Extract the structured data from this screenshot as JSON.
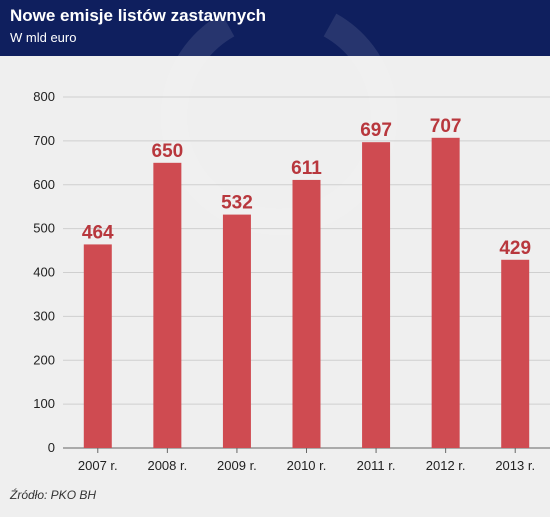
{
  "header": {
    "title": "Nowe emisje listów zastawnych",
    "subtitle": "W mld euro"
  },
  "source": "Źródło: PKO BH",
  "colors": {
    "bar": "#cf4b51",
    "label": "#b8373d",
    "header_bg": "#0f1f5e",
    "background": "#efefef",
    "gridline": "#cfcfcf"
  },
  "chart_data": {
    "type": "bar",
    "categories": [
      "2007 r.",
      "2008 r.",
      "2009 r.",
      "2010 r.",
      "2011 r.",
      "2012 r.",
      "2013 r."
    ],
    "values": [
      464,
      650,
      532,
      611,
      697,
      707,
      429
    ],
    "ylim": [
      0,
      800
    ],
    "yticks": [
      0,
      100,
      200,
      300,
      400,
      500,
      600,
      700,
      800
    ],
    "grid": true,
    "legend": "none"
  }
}
